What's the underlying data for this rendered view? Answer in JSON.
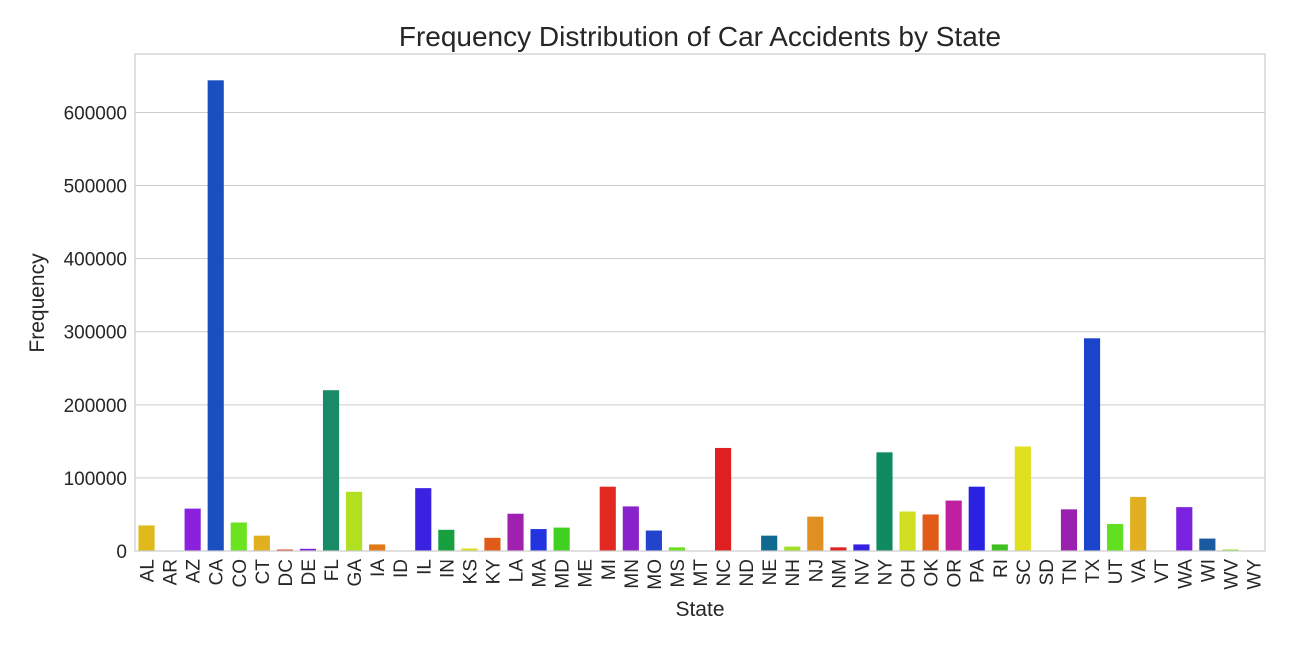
{
  "chart_data": {
    "type": "bar",
    "title": "Frequency Distribution of Car Accidents by State",
    "xlabel": "State",
    "ylabel": "Frequency",
    "ylim": [
      0,
      680000
    ],
    "yticks": [
      0,
      100000,
      200000,
      300000,
      400000,
      500000,
      600000
    ],
    "grid": true,
    "categories": [
      "AL",
      "AR",
      "AZ",
      "CA",
      "CO",
      "CT",
      "DC",
      "DE",
      "FL",
      "GA",
      "IA",
      "ID",
      "IL",
      "IN",
      "KS",
      "KY",
      "LA",
      "MA",
      "MD",
      "ME",
      "MI",
      "MN",
      "MO",
      "MS",
      "MT",
      "NC",
      "ND",
      "NE",
      "NH",
      "NJ",
      "NM",
      "NV",
      "NY",
      "OH",
      "OK",
      "OR",
      "PA",
      "RI",
      "SC",
      "SD",
      "TN",
      "TX",
      "UT",
      "VA",
      "VT",
      "WA",
      "WI",
      "WV",
      "WY"
    ],
    "values": [
      35000,
      500,
      58000,
      644000,
      39000,
      21000,
      2000,
      3000,
      220000,
      81000,
      9000,
      600,
      86000,
      29000,
      3500,
      18000,
      51000,
      30000,
      32000,
      700,
      88000,
      61000,
      28000,
      5000,
      300,
      141000,
      300,
      21000,
      6000,
      47000,
      5000,
      9000,
      135000,
      54000,
      50000,
      69000,
      88000,
      9000,
      143000,
      500,
      57000,
      291000,
      37000,
      74000,
      600,
      60000,
      17000,
      2000,
      600
    ],
    "colors": [
      "#e0b91a",
      "#2233cc",
      "#8a22dd",
      "#1a4fbf",
      "#6be320",
      "#e0b020",
      "#e03322",
      "#7a22dd",
      "#188a66",
      "#b0e020",
      "#e07a18",
      "#2233cc",
      "#3a22e0",
      "#18a040",
      "#d8e020",
      "#e05a18",
      "#a020b0",
      "#2233e0",
      "#40d020",
      "#e07a18",
      "#e02a22",
      "#8a22cc",
      "#2244cc",
      "#6ae020",
      "#e0b020",
      "#e02020",
      "#2233cc",
      "#106a90",
      "#a0e020",
      "#e09020",
      "#e02222",
      "#3322e0",
      "#108a60",
      "#d0e020",
      "#e05a18",
      "#c020a0",
      "#2a22e0",
      "#40c020",
      "#e0e020",
      "#e05a18",
      "#9a20b0",
      "#1a44cc",
      "#60e020",
      "#e0b020",
      "#2233cc",
      "#7a22e0",
      "#1a5aa0",
      "#90e020",
      "#e0b020"
    ]
  }
}
